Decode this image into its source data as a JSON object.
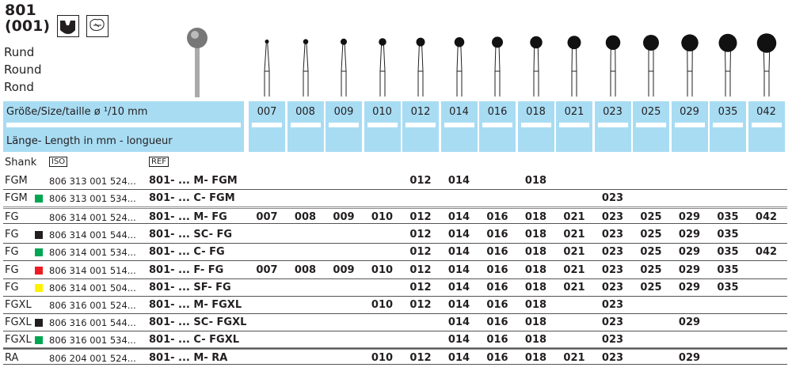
{
  "product": {
    "code": "801",
    "iso_code": "(001)",
    "names": [
      "Rund",
      "Round",
      "Rond"
    ],
    "icons": [
      "crown-prep-icon",
      "mouth-icon"
    ]
  },
  "header": {
    "size_label": "Größe/Size/taille  ø ¹/10 mm",
    "length_label": "Länge- Length in mm - longueur",
    "shank_label": "Shank",
    "iso_label": "ISO",
    "ref_label": "REF"
  },
  "sizes": [
    "007",
    "008",
    "009",
    "010",
    "012",
    "014",
    "016",
    "018",
    "021",
    "023",
    "025",
    "029",
    "035",
    "042"
  ],
  "colors": {
    "header_bg": "#a8dcf3",
    "green": "#00a651",
    "black": "#231f20",
    "red": "#ed1c24",
    "yellow": "#fff200"
  },
  "rows": [
    {
      "shank": "FGM",
      "grit": "",
      "iso": "806 313 001 524...",
      "ref": "801- ... M-  FGM",
      "sizes": [
        "",
        "",
        "",
        "",
        "012",
        "014",
        "",
        "018",
        "",
        "",
        "",
        "",
        "",
        ""
      ]
    },
    {
      "shank": "FGM",
      "grit": "green",
      "iso": "806 313 001 534...",
      "ref": "801- ... C-   FGM",
      "sizes": [
        "",
        "",
        "",
        "",
        "",
        "",
        "",
        "",
        "",
        "023",
        "",
        "",
        "",
        ""
      ]
    },
    {
      "shank": "FG",
      "grit": "",
      "iso": "806 314 001 524...",
      "ref": "801- ... M-  FG",
      "sizes": [
        "007",
        "008",
        "009",
        "010",
        "012",
        "014",
        "016",
        "018",
        "021",
        "023",
        "025",
        "029",
        "035",
        "042"
      ]
    },
    {
      "shank": "FG",
      "grit": "black",
      "iso": "806 314 001 544...",
      "ref": "801- ... SC- FG",
      "sizes": [
        "",
        "",
        "",
        "",
        "012",
        "014",
        "016",
        "018",
        "021",
        "023",
        "025",
        "029",
        "035",
        ""
      ]
    },
    {
      "shank": "FG",
      "grit": "green",
      "iso": "806 314 001 534...",
      "ref": "801- ... C-   FG",
      "sizes": [
        "",
        "",
        "",
        "",
        "012",
        "014",
        "016",
        "018",
        "021",
        "023",
        "025",
        "029",
        "035",
        "042"
      ]
    },
    {
      "shank": "FG",
      "grit": "red",
      "iso": "806 314 001 514...",
      "ref": "801- ... F-   FG",
      "sizes": [
        "007",
        "008",
        "009",
        "010",
        "012",
        "014",
        "016",
        "018",
        "021",
        "023",
        "025",
        "029",
        "035",
        ""
      ]
    },
    {
      "shank": "FG",
      "grit": "yellow",
      "iso": "806 314 001 504...",
      "ref": "801- ... SF- FG",
      "sizes": [
        "",
        "",
        "",
        "",
        "012",
        "014",
        "016",
        "018",
        "021",
        "023",
        "025",
        "029",
        "035",
        ""
      ]
    },
    {
      "shank": "FGXL",
      "grit": "",
      "iso": "806 316 001 524...",
      "ref": "801- ... M-  FGXL",
      "sizes": [
        "",
        "",
        "",
        "010",
        "012",
        "014",
        "016",
        "018",
        "",
        "023",
        "",
        "",
        "",
        ""
      ]
    },
    {
      "shank": "FGXL",
      "grit": "black",
      "iso": "806 316 001 544...",
      "ref": "801- ... SC- FGXL",
      "sizes": [
        "",
        "",
        "",
        "",
        "",
        "014",
        "016",
        "018",
        "",
        "023",
        "",
        "029",
        "",
        ""
      ]
    },
    {
      "shank": "FGXL",
      "grit": "green",
      "iso": "806 316 001 534...",
      "ref": "801- ... C-   FGXL",
      "sizes": [
        "",
        "",
        "",
        "",
        "",
        "014",
        "016",
        "018",
        "",
        "023",
        "",
        "",
        "",
        ""
      ]
    },
    {
      "shank": "RA",
      "grit": "",
      "iso": "806 204 001 524...",
      "ref": "801- ... M-  RA",
      "sizes": [
        "",
        "",
        "",
        "010",
        "012",
        "014",
        "016",
        "018",
        "021",
        "023",
        "",
        "029",
        "",
        ""
      ]
    }
  ]
}
